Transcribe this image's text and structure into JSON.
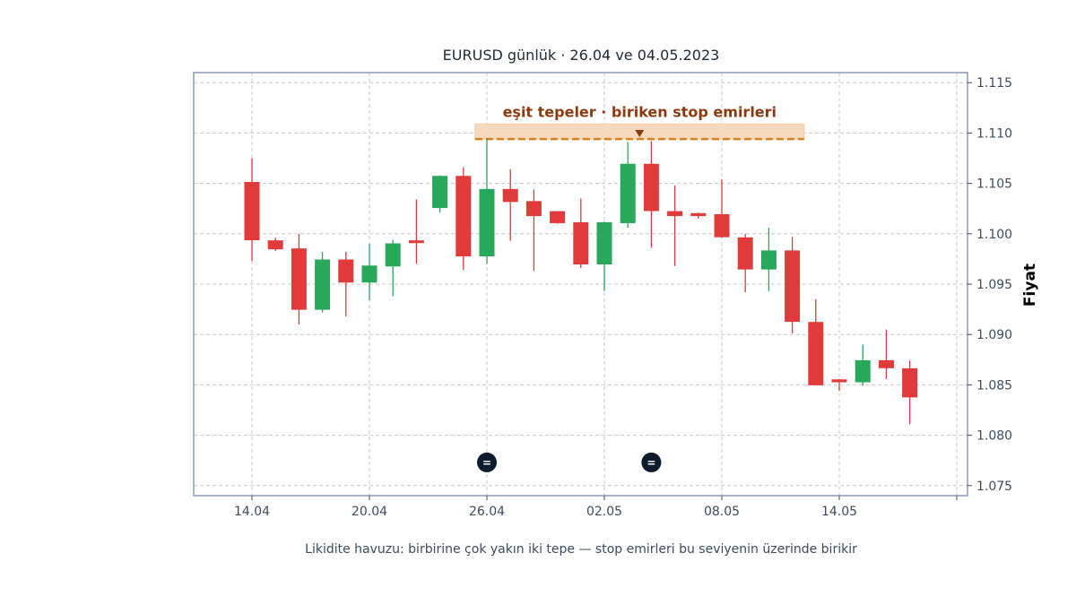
{
  "chart_data": {
    "type": "candlestick",
    "title": "EURUSD günlük · 26.04 ve 04.05.2023",
    "xlabel": "",
    "ylabel": "Fiyat",
    "caption": "Likidite havuzu: birbirine çok yakın iki tepe — stop emirleri bu seviyenin üzerinde birikir",
    "ylim": [
      1.074,
      1.116
    ],
    "yticks": [
      "1.075",
      "1.080",
      "1.085",
      "1.090",
      "1.095",
      "1.100",
      "1.105",
      "1.110",
      "1.115"
    ],
    "xticks": [
      "14.04",
      "20.04",
      "26.04",
      "02.05",
      "08.05",
      "14.05",
      ""
    ],
    "grid": true,
    "colors": {
      "up": "#27a85a",
      "down": "#e03a3a",
      "zone": "#f6d9bd",
      "level": "#d9821d",
      "annotation": "#8b3a0f",
      "marker": "#0d1b2e"
    },
    "candles": [
      {
        "date": "14.04",
        "open": 1.1051,
        "high": 1.1075,
        "low": 1.0973,
        "close": 1.0994
      },
      {
        "date": "15.04",
        "open": 1.0993,
        "high": 1.0996,
        "low": 1.0983,
        "close": 1.0985
      },
      {
        "date": "17.04",
        "open": 1.0985,
        "high": 1.1,
        "low": 1.091,
        "close": 1.0925
      },
      {
        "date": "18.04",
        "open": 1.0925,
        "high": 1.0982,
        "low": 1.0922,
        "close": 1.0974
      },
      {
        "date": "19.04",
        "open": 1.0974,
        "high": 1.0982,
        "low": 1.0918,
        "close": 1.0952
      },
      {
        "date": "20.04",
        "open": 1.0952,
        "high": 1.099,
        "low": 1.0934,
        "close": 1.0968
      },
      {
        "date": "21.04",
        "open": 1.0968,
        "high": 1.0994,
        "low": 1.0938,
        "close": 1.099
      },
      {
        "date": "22.04",
        "open": 1.0993,
        "high": 1.1034,
        "low": 1.097,
        "close": 1.0992
      },
      {
        "date": "24.04",
        "open": 1.1026,
        "high": 1.1058,
        "low": 1.1021,
        "close": 1.1057
      },
      {
        "date": "25.04",
        "open": 1.1057,
        "high": 1.1066,
        "low": 1.0964,
        "close": 1.0978
      },
      {
        "date": "26.04",
        "open": 1.0978,
        "high": 1.1095,
        "low": 1.097,
        "close": 1.1044
      },
      {
        "date": "27.04",
        "open": 1.1044,
        "high": 1.1064,
        "low": 1.0993,
        "close": 1.1032
      },
      {
        "date": "28.04",
        "open": 1.1032,
        "high": 1.1044,
        "low": 1.0963,
        "close": 1.1018
      },
      {
        "date": "29.04",
        "open": 1.1022,
        "high": 1.1022,
        "low": 1.101,
        "close": 1.1011
      },
      {
        "date": "01.05",
        "open": 1.1011,
        "high": 1.1035,
        "low": 1.0966,
        "close": 1.097
      },
      {
        "date": "02.05",
        "open": 1.097,
        "high": 1.1012,
        "low": 1.0943,
        "close": 1.1011
      },
      {
        "date": "03.05",
        "open": 1.1011,
        "high": 1.1091,
        "low": 1.1006,
        "close": 1.1069
      },
      {
        "date": "04.05",
        "open": 1.1069,
        "high": 1.1092,
        "low": 1.0986,
        "close": 1.1023
      },
      {
        "date": "05.05",
        "open": 1.1022,
        "high": 1.1048,
        "low": 1.0968,
        "close": 1.1018
      },
      {
        "date": "06.05",
        "open": 1.102,
        "high": 1.1021,
        "low": 1.1015,
        "close": 1.1018
      },
      {
        "date": "08.05",
        "open": 1.1019,
        "high": 1.1054,
        "low": 1.0996,
        "close": 1.0997
      },
      {
        "date": "09.05",
        "open": 1.0996,
        "high": 1.1,
        "low": 1.0942,
        "close": 1.0965
      },
      {
        "date": "10.05",
        "open": 1.0965,
        "high": 1.1006,
        "low": 1.0943,
        "close": 1.0983
      },
      {
        "date": "11.05",
        "open": 1.0983,
        "high": 1.0997,
        "low": 1.0901,
        "close": 1.0913
      },
      {
        "date": "12.05",
        "open": 1.0912,
        "high": 1.0935,
        "low": 1.085,
        "close": 1.085
      },
      {
        "date": "13.05",
        "open": 1.0855,
        "high": 1.0856,
        "low": 1.0844,
        "close": 1.0853
      },
      {
        "date": "15.05",
        "open": 1.0853,
        "high": 1.089,
        "low": 1.0849,
        "close": 1.0874
      },
      {
        "date": "16.05",
        "open": 1.0874,
        "high": 1.0905,
        "low": 1.0856,
        "close": 1.0867
      },
      {
        "date": "17.05",
        "open": 1.0866,
        "high": 1.0874,
        "low": 1.0811,
        "close": 1.0838
      }
    ],
    "resistance_zone": {
      "from_index": 9.5,
      "to_index": 23.5,
      "low": 1.1094,
      "high": 1.1109
    },
    "resistance_level": 1.1094,
    "annotation": {
      "text": "eşit tepeler · biriken stop emirleri",
      "index": 16.5,
      "value": 1.1115,
      "arrow_to": 1.1095
    },
    "equal_markers": [
      {
        "index": 10,
        "value": 1.0773,
        "label": "="
      },
      {
        "index": 17,
        "value": 1.0773,
        "label": "="
      }
    ]
  }
}
